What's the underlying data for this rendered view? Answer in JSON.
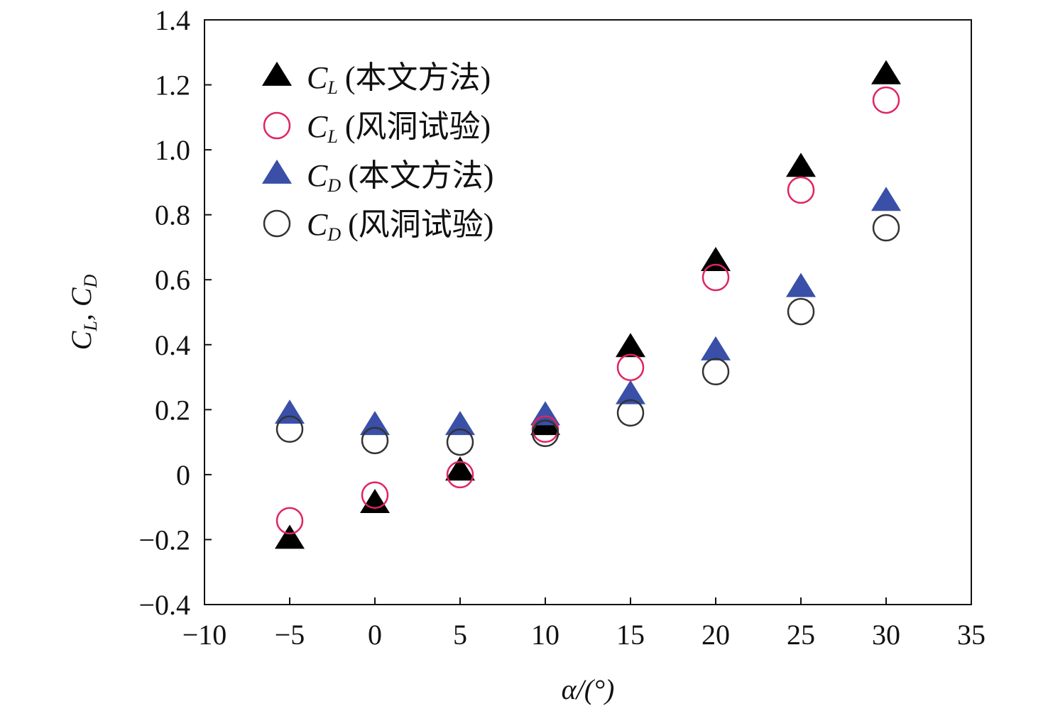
{
  "chart_data": {
    "type": "scatter",
    "title": "",
    "xlabel": "α/(°)",
    "ylabel": {
      "parts": [
        "C",
        "L",
        ", ",
        "C",
        "D"
      ]
    },
    "xlim": [
      -10,
      35
    ],
    "ylim": [
      -0.4,
      1.4
    ],
    "xticks": [
      -10,
      -5,
      0,
      5,
      10,
      15,
      20,
      25,
      30,
      35
    ],
    "xtick_labels": [
      "−10",
      "−5",
      "0",
      "5",
      "10",
      "15",
      "20",
      "25",
      "30",
      "35"
    ],
    "yticks": [
      -0.4,
      -0.2,
      0,
      0.2,
      0.4,
      0.6,
      0.8,
      1.0,
      1.2,
      1.4
    ],
    "ytick_labels": [
      "−0.4",
      "−0.2",
      "0",
      "0.2",
      "0.4",
      "0.6",
      "0.8",
      "1.0",
      "1.2",
      "1.4"
    ],
    "grid": false,
    "legend_position": "top-left",
    "x": [
      -5,
      0,
      5,
      10,
      15,
      20,
      25,
      30
    ],
    "series": [
      {
        "name": "C_L (本文方法)",
        "symbol": "C",
        "sub": "L",
        "suffix": "(本文方法)",
        "marker": "triangle",
        "color": "#000000",
        "filled": true,
        "values": [
          -0.2,
          -0.09,
          0.01,
          0.15,
          0.39,
          0.655,
          0.945,
          1.23
        ]
      },
      {
        "name": "C_L (风洞试验)",
        "symbol": "C",
        "sub": "L",
        "suffix": "(风洞试验)",
        "marker": "circle",
        "color": "#e0245e",
        "filled": false,
        "values": [
          -0.142,
          -0.063,
          0.0,
          0.14,
          0.33,
          0.607,
          0.876,
          1.153
        ]
      },
      {
        "name": "C_D (本文方法)",
        "symbol": "C",
        "sub": "D",
        "suffix": "(本文方法)",
        "marker": "triangle",
        "color": "#3a4fa8",
        "filled": true,
        "values": [
          0.185,
          0.15,
          0.15,
          0.18,
          0.245,
          0.38,
          0.575,
          0.84
        ]
      },
      {
        "name": "C_D (风洞试验)",
        "symbol": "C",
        "sub": "D",
        "suffix": "(风洞试验)",
        "marker": "circle",
        "color": "#333333",
        "filled": false,
        "values": [
          0.14,
          0.105,
          0.1,
          0.127,
          0.19,
          0.317,
          0.502,
          0.76
        ]
      }
    ]
  }
}
